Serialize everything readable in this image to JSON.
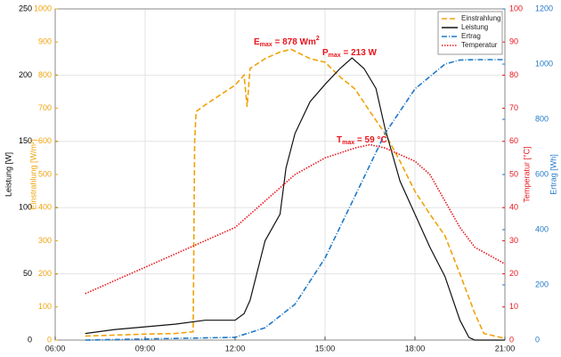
{
  "chart_data": {
    "type": "line",
    "xlim": [
      6,
      21
    ],
    "xticks": [
      {
        "value": 6,
        "label": "06:00"
      },
      {
        "value": 9,
        "label": "09:00"
      },
      {
        "value": 12,
        "label": "12:00"
      },
      {
        "value": 15,
        "label": "15:00"
      },
      {
        "value": 18,
        "label": "18:00"
      },
      {
        "value": 21,
        "label": "21:00"
      }
    ],
    "grid": true,
    "legend": "top right",
    "axes": [
      {
        "label": "Leistung [W]",
        "color": "#000000",
        "lim": [
          0,
          250
        ],
        "ticks": [
          0,
          50,
          100,
          150,
          200,
          250
        ]
      },
      {
        "label": "Einstrahlung [W/m²]",
        "color": "#f0a30a",
        "lim": [
          0,
          1000
        ],
        "ticks": [
          0,
          100,
          200,
          300,
          400,
          500,
          600,
          700,
          800,
          900,
          1000
        ]
      },
      {
        "label": "Temperatur [°C]",
        "color": "#e8141b",
        "lim": [
          0,
          100
        ],
        "ticks": [
          0,
          10,
          20,
          30,
          40,
          50,
          60,
          70,
          80,
          90,
          100
        ]
      },
      {
        "label": "Ertrag [Wh]",
        "color": "#1f78c8",
        "lim": [
          0,
          1200
        ],
        "ticks": [
          0,
          200,
          400,
          600,
          800,
          1000,
          1200
        ]
      }
    ],
    "series": [
      {
        "name": "Einstrahlung",
        "color": "#f0a30a",
        "dash": "6,3",
        "axis": 1,
        "x": [
          7,
          8,
          9,
          10,
          10.6,
          10.65,
          10.7,
          11,
          11.5,
          12,
          12.3,
          12.4,
          12.5,
          13,
          13.5,
          13.87,
          14.5,
          15,
          15.5,
          16,
          16.5,
          17,
          17.5,
          18,
          18.5,
          19,
          19.5,
          20,
          20.3,
          21
        ],
        "values": [
          12,
          15,
          18,
          20,
          25,
          600,
          690,
          710,
          740,
          770,
          800,
          704,
          820,
          850,
          870,
          878,
          850,
          839,
          795,
          758,
          690,
          624,
          540,
          449,
          380,
          315,
          200,
          80,
          20,
          5
        ]
      },
      {
        "name": "Leistung",
        "color": "#111111",
        "dash": "none",
        "axis": 0,
        "x": [
          7,
          8,
          9,
          10,
          11,
          12,
          12.3,
          12.5,
          13,
          13.5,
          13.7,
          14,
          14.5,
          15,
          15.5,
          15.9,
          16.3,
          16.7,
          17,
          17.5,
          18,
          18.5,
          19,
          19.5,
          19.8,
          20,
          21
        ],
        "values": [
          5,
          8,
          10,
          12,
          15,
          15,
          20,
          30,
          75,
          95,
          130,
          156,
          180,
          193,
          205,
          213,
          205,
          190,
          160,
          120,
          95,
          70,
          48,
          15,
          2,
          0,
          0
        ]
      },
      {
        "name": "Ertrag",
        "color": "#1f78c8",
        "dash": "6,2,1,2",
        "axis": 3,
        "x": [
          7,
          12,
          13,
          14,
          15,
          16,
          17,
          18,
          19,
          19.5,
          20,
          21
        ],
        "values": [
          0,
          10,
          45,
          130,
          297,
          522,
          748,
          910,
          1000,
          1015,
          1016,
          1016
        ]
      },
      {
        "name": "Temperatur",
        "color": "#e8141b",
        "dash": "1.5,1.5",
        "axis": 2,
        "x": [
          7,
          8,
          9,
          10,
          11,
          12,
          13,
          14,
          15,
          16,
          16.5,
          17,
          18,
          18.5,
          19,
          19.5,
          20,
          21
        ],
        "values": [
          14,
          18,
          22,
          26,
          30,
          34,
          42,
          50,
          55,
          58,
          59,
          58,
          54,
          50,
          42,
          34,
          28,
          23
        ]
      }
    ],
    "annotations": [
      {
        "parts": [
          "E",
          "max",
          " = 878 Wm",
          "2"
        ]
      },
      {
        "parts": [
          "P",
          "max",
          " = 213 W"
        ]
      },
      {
        "parts": [
          "T",
          "max",
          " = 59 °C"
        ]
      }
    ]
  }
}
